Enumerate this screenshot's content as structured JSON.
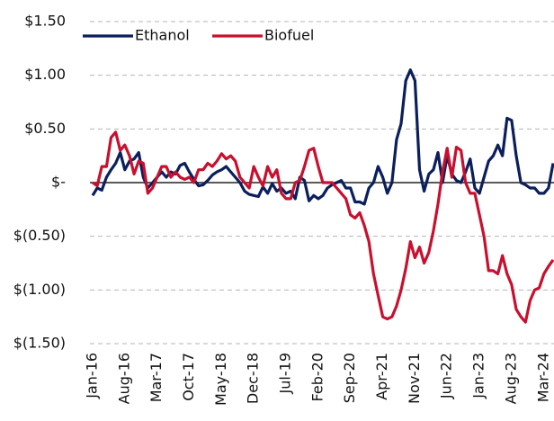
{
  "chart_data": {
    "type": "line",
    "categories": [
      "Jan-16",
      null,
      null,
      null,
      null,
      null,
      null,
      "Aug-16",
      null,
      null,
      null,
      null,
      null,
      null,
      "Mar-17",
      null,
      null,
      null,
      null,
      null,
      null,
      "Oct-17",
      null,
      null,
      null,
      null,
      null,
      null,
      "May-18",
      null,
      null,
      null,
      null,
      null,
      null,
      "Dec-18",
      null,
      null,
      null,
      null,
      null,
      null,
      "Jul-19",
      null,
      null,
      null,
      null,
      null,
      null,
      "Feb-20",
      null,
      null,
      null,
      null,
      null,
      null,
      "Sep-20",
      null,
      null,
      null,
      null,
      null,
      null,
      "Apr-21",
      null,
      null,
      null,
      null,
      null,
      null,
      "Nov-21",
      null,
      null,
      null,
      null,
      null,
      null,
      "Jun-22",
      null,
      null,
      null,
      null,
      null,
      null,
      "Jan-23",
      null,
      null,
      null,
      null,
      null,
      null,
      "Aug-23",
      null,
      null,
      null,
      null,
      null,
      null,
      "Mar-24",
      null,
      null
    ],
    "series": [
      {
        "name": "Ethanol",
        "color": "#0b1f5c",
        "values": [
          -0.12,
          -0.05,
          -0.07,
          0.05,
          0.12,
          0.18,
          0.28,
          0.12,
          0.2,
          0.22,
          0.28,
          0.05,
          -0.05,
          0.0,
          0.05,
          0.1,
          0.05,
          0.1,
          0.08,
          0.16,
          0.18,
          0.1,
          0.03,
          -0.03,
          -0.02,
          0.02,
          0.07,
          0.1,
          0.12,
          0.15,
          0.1,
          0.05,
          0.0,
          -0.08,
          -0.11,
          -0.12,
          -0.13,
          -0.04,
          -0.1,
          -0.01,
          -0.08,
          -0.05,
          -0.1,
          -0.08,
          -0.15,
          0.05,
          0.02,
          -0.17,
          -0.12,
          -0.15,
          -0.12,
          -0.05,
          -0.02,
          0.0,
          0.02,
          -0.05,
          -0.05,
          -0.18,
          -0.18,
          -0.2,
          -0.05,
          0.0,
          0.15,
          0.05,
          -0.1,
          0.0,
          0.4,
          0.55,
          0.95,
          1.05,
          0.95,
          0.12,
          -0.08,
          0.08,
          0.12,
          0.28,
          0.0,
          0.25,
          0.08,
          0.02,
          0.0,
          0.1,
          0.22,
          -0.05,
          -0.1,
          0.05,
          0.2,
          0.25,
          0.35,
          0.25,
          0.6,
          0.58,
          0.25,
          0.0,
          -0.02,
          -0.05,
          -0.05,
          -0.1,
          -0.1,
          -0.05,
          0.18
        ]
      },
      {
        "name": "Biofuel",
        "color": "#c8102e",
        "values": [
          0.0,
          -0.03,
          0.15,
          0.15,
          0.42,
          0.47,
          0.3,
          0.35,
          0.25,
          0.08,
          0.2,
          0.18,
          -0.1,
          -0.05,
          0.05,
          0.15,
          0.15,
          0.05,
          0.1,
          0.05,
          0.03,
          0.05,
          0.0,
          0.12,
          0.12,
          0.18,
          0.15,
          0.2,
          0.27,
          0.22,
          0.25,
          0.2,
          0.05,
          0.0,
          -0.05,
          0.15,
          0.05,
          -0.03,
          0.15,
          0.05,
          0.12,
          -0.1,
          -0.15,
          -0.15,
          0.0,
          0.02,
          0.15,
          0.3,
          0.32,
          0.15,
          0.0,
          0.0,
          0.0,
          -0.05,
          -0.1,
          -0.15,
          -0.3,
          -0.33,
          -0.28,
          -0.4,
          -0.55,
          -0.85,
          -1.05,
          -1.25,
          -1.27,
          -1.25,
          -1.15,
          -1.0,
          -0.8,
          -0.55,
          -0.7,
          -0.6,
          -0.75,
          -0.65,
          -0.45,
          -0.2,
          0.1,
          0.32,
          0.05,
          0.33,
          0.3,
          0.0,
          -0.1,
          -0.1,
          -0.3,
          -0.5,
          -0.82,
          -0.82,
          -0.85,
          -0.68,
          -0.85,
          -0.95,
          -1.18,
          -1.25,
          -1.3,
          -1.1,
          -1.0,
          -0.98,
          -0.85,
          -0.78,
          -0.72
        ]
      }
    ],
    "ylim": [
      -1.5,
      1.5
    ],
    "yticks": [
      {
        "value": -1.5,
        "label": "$(1.50)"
      },
      {
        "value": -1.0,
        "label": "$(1.00)"
      },
      {
        "value": -0.5,
        "label": "$(0.50)"
      },
      {
        "value": 0,
        "label": "$-"
      },
      {
        "value": 0.5,
        "label": "$0.50"
      },
      {
        "value": 1.0,
        "label": "$1.00"
      },
      {
        "value": 1.5,
        "label": "$1.50"
      }
    ],
    "grid": true,
    "legend": "top"
  }
}
